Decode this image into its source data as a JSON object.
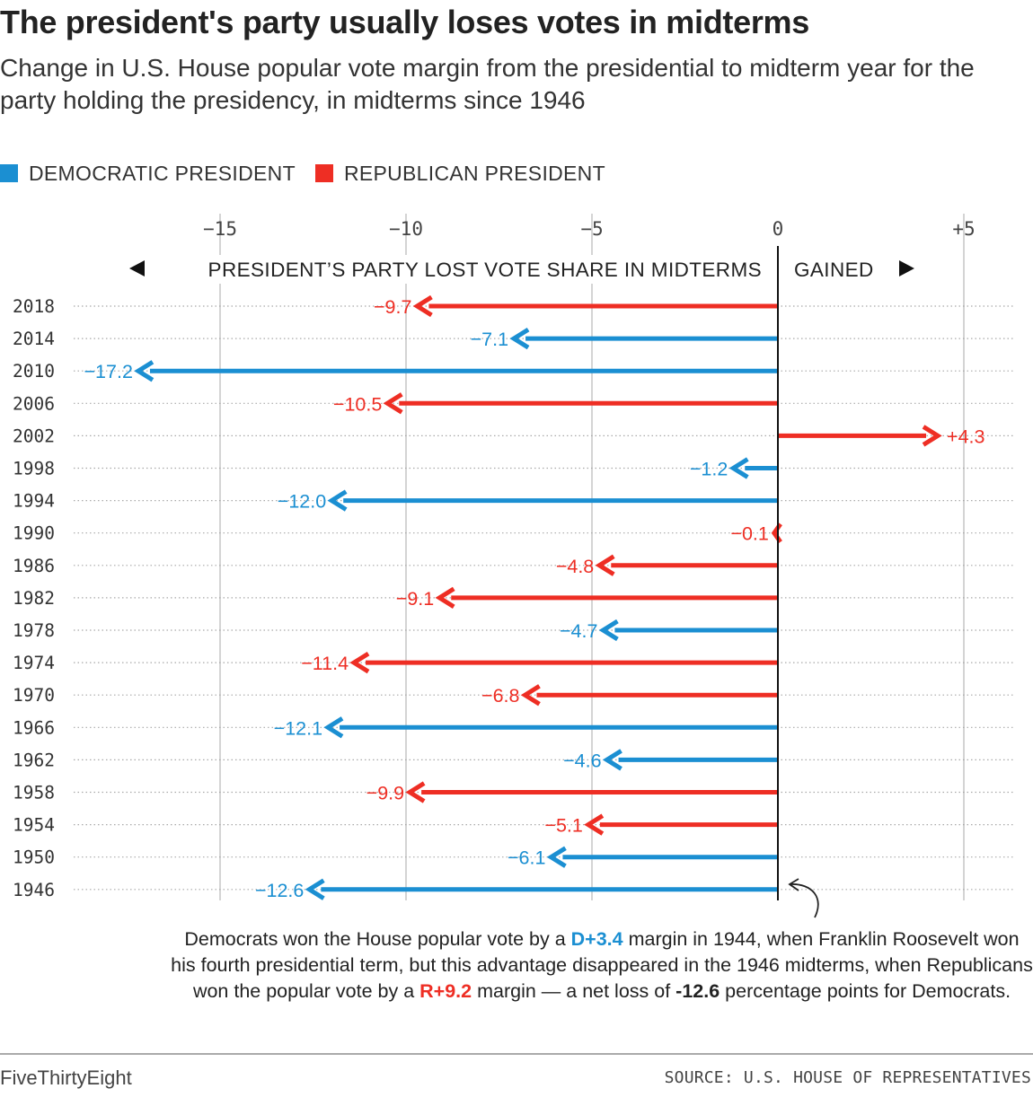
{
  "header": {
    "title": "The president's party usually loses votes in midterms",
    "subtitle": "Change in U.S. House popular vote margin from the presidential to midterm year for the party holding the presidency, in midterms since 1946"
  },
  "legend": {
    "dem_label": "DEMOCRATIC PRESIDENT",
    "rep_label": "REPUBLICAN PRESIDENT"
  },
  "colors": {
    "democratic": "#1b8fd2",
    "republican": "#ee2e24"
  },
  "chart_data": {
    "type": "bar",
    "orientation": "horizontal",
    "direction_labels": {
      "lost": "PRESIDENT’S PARTY LOST VOTE SHARE IN MIDTERMS",
      "gained": "GAINED"
    },
    "xlim": [
      -19,
      6.5
    ],
    "ticks": [
      {
        "value": -15,
        "label": "−15"
      },
      {
        "value": -10,
        "label": "−10"
      },
      {
        "value": -5,
        "label": "−5"
      },
      {
        "value": 0,
        "label": "0"
      },
      {
        "value": 5,
        "label": "+5"
      }
    ],
    "grid": true,
    "legend_position": "top-left",
    "rows": [
      {
        "year": "2018",
        "value": -9.7,
        "label": "−9.7",
        "party": "R"
      },
      {
        "year": "2014",
        "value": -7.1,
        "label": "−7.1",
        "party": "D"
      },
      {
        "year": "2010",
        "value": -17.2,
        "label": "−17.2",
        "party": "D"
      },
      {
        "year": "2006",
        "value": -10.5,
        "label": "−10.5",
        "party": "R"
      },
      {
        "year": "2002",
        "value": 4.3,
        "label": "+4.3",
        "party": "R"
      },
      {
        "year": "1998",
        "value": -1.2,
        "label": "−1.2",
        "party": "D"
      },
      {
        "year": "1994",
        "value": -12.0,
        "label": "−12.0",
        "party": "D"
      },
      {
        "year": "1990",
        "value": -0.1,
        "label": "−0.1",
        "party": "R"
      },
      {
        "year": "1986",
        "value": -4.8,
        "label": "−4.8",
        "party": "R"
      },
      {
        "year": "1982",
        "value": -9.1,
        "label": "−9.1",
        "party": "R"
      },
      {
        "year": "1978",
        "value": -4.7,
        "label": "−4.7",
        "party": "D"
      },
      {
        "year": "1974",
        "value": -11.4,
        "label": "−11.4",
        "party": "R"
      },
      {
        "year": "1970",
        "value": -6.8,
        "label": "−6.8",
        "party": "R"
      },
      {
        "year": "1966",
        "value": -12.1,
        "label": "−12.1",
        "party": "D"
      },
      {
        "year": "1962",
        "value": -4.6,
        "label": "−4.6",
        "party": "D"
      },
      {
        "year": "1958",
        "value": -9.9,
        "label": "−9.9",
        "party": "R"
      },
      {
        "year": "1954",
        "value": -5.1,
        "label": "−5.1",
        "party": "R"
      },
      {
        "year": "1950",
        "value": -6.1,
        "label": "−6.1",
        "party": "D"
      },
      {
        "year": "1946",
        "value": -12.6,
        "label": "−12.6",
        "party": "D"
      }
    ]
  },
  "annotation": {
    "part1": "Democrats won the House popular vote by a ",
    "d_margin": "D+3.4",
    "part2": " margin in 1944, when Franklin Roosevelt won his fourth presidential term, but this advantage disappeared in the 1946 midterms, when Republicans won the popular vote by a ",
    "r_margin": "R+9.2",
    "part3": " margin — a net loss of ",
    "net_loss": "-12.6",
    "part4": " percentage points for Democrats."
  },
  "footer": {
    "brand": "FiveThirtyEight",
    "source": "SOURCE: U.S. HOUSE OF REPRESENTATIVES"
  }
}
